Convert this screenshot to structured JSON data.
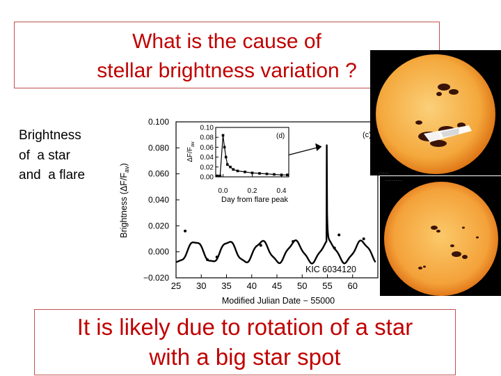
{
  "title": {
    "line1": "What is the cause of",
    "line2": "stellar brightness variation ?"
  },
  "side_label": {
    "line1": "Brightness",
    "line2": "of  a star",
    "line3": "and  a flare"
  },
  "conclusion": {
    "line1": "It  is likely due to rotation of a star",
    "line2": "with a big star spot"
  },
  "colors": {
    "accent_text": "#c00000",
    "box_border": "#c0504d",
    "sun_core": "#f7b955",
    "sun_edge": "#e07410",
    "spot": "#3a1408"
  },
  "photos": [
    {
      "caption": "sunspot-group-closeup",
      "icon": "sun-with-large-spots"
    },
    {
      "caption": "full-solar-disk",
      "icon": "sun-with-small-spots"
    }
  ],
  "chart_data": [
    {
      "type": "line",
      "xlabel": "Modified Julian Date − 55000",
      "ylabel": "Brightness (ΔF/F",
      "ylabel_sub": "av",
      "ylabel_close": ")",
      "xlim": [
        25,
        65
      ],
      "ylim": [
        -0.02,
        0.1
      ],
      "x_ticks": [
        "25",
        "30",
        "35",
        "40",
        "45",
        "50",
        "55",
        "60"
      ],
      "y_ticks": [
        "0.100",
        "0.080",
        "0.060",
        "0.040",
        "0.020",
        "0.000",
        "−0.020"
      ],
      "panel_label": "(c)",
      "annotation": "KIC 6034120",
      "rotation_period_days": 6.6,
      "amplitude": 0.008,
      "flare": {
        "x": 54.9,
        "peak": 0.082
      },
      "grid": false
    },
    {
      "type": "line",
      "panel_label": "(d)",
      "xlabel": "Day from flare peak",
      "ylabel": "ΔF/F",
      "ylabel_sub": "av",
      "xlim": [
        -0.05,
        0.45
      ],
      "ylim": [
        0,
        0.1
      ],
      "x_ticks": [
        "0.0",
        "0.2",
        "0.4"
      ],
      "y_ticks": [
        "0.10",
        "0.08",
        "0.06",
        "0.04",
        "0.02",
        "0.00"
      ],
      "x": [
        -0.04,
        -0.02,
        0.0,
        0.01,
        0.02,
        0.03,
        0.05,
        0.07,
        0.1,
        0.15,
        0.2,
        0.25,
        0.3,
        0.35,
        0.4,
        0.44
      ],
      "y": [
        0.002,
        0.002,
        0.084,
        0.06,
        0.04,
        0.025,
        0.02,
        0.015,
        0.012,
        0.01,
        0.008,
        0.007,
        0.006,
        0.005,
        0.004,
        0.004
      ]
    }
  ]
}
